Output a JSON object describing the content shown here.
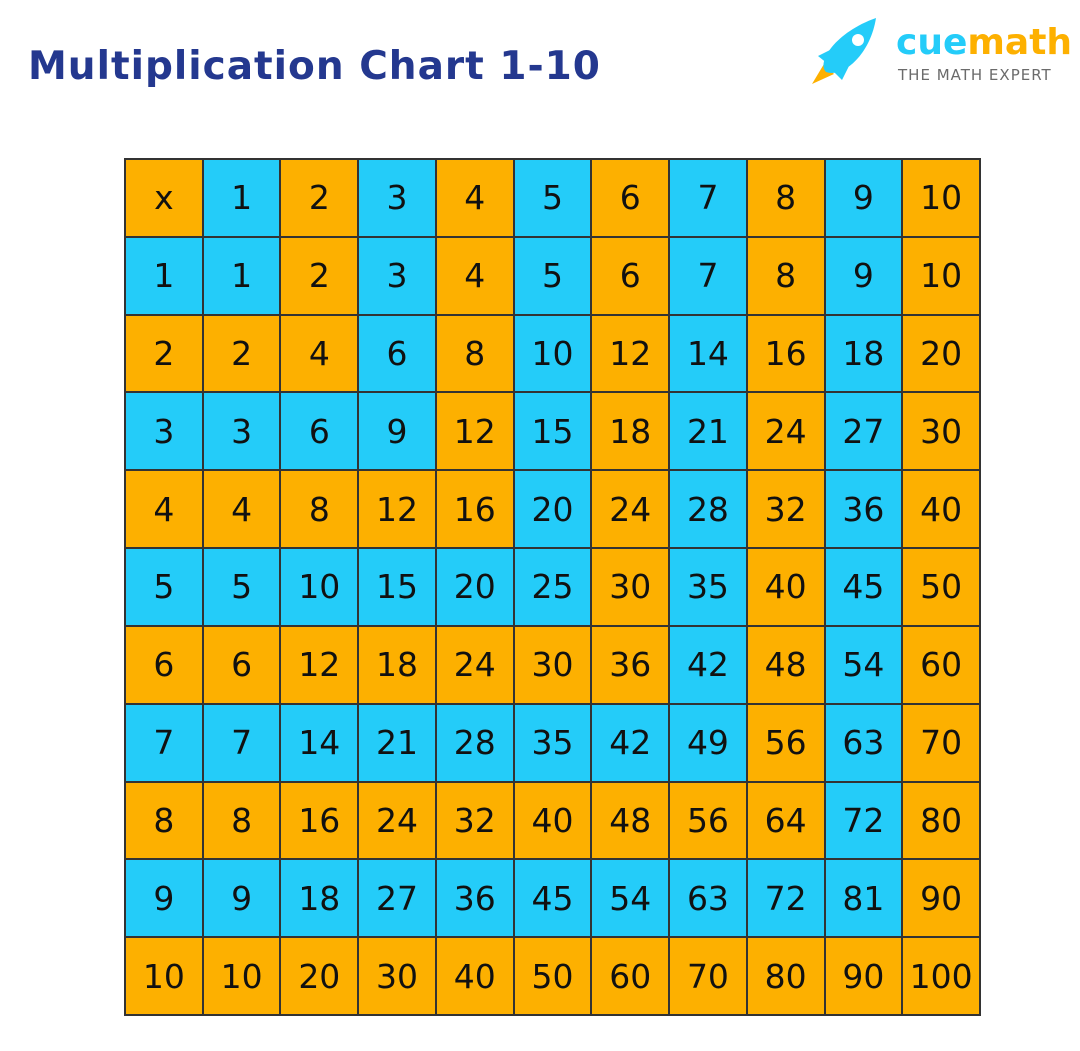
{
  "title": "Multiplication Chart 1-10",
  "logo": {
    "brand_part1": "cue",
    "brand_part2": "math",
    "tagline": "THE MATH EXPERT",
    "icon": "rocket-icon"
  },
  "colors": {
    "orange": "#fdb000",
    "blue": "#24ccf9",
    "title": "#24388f"
  },
  "table": {
    "corner": "x",
    "header": [
      "1",
      "2",
      "3",
      "4",
      "5",
      "6",
      "7",
      "8",
      "9",
      "10"
    ],
    "rows": [
      [
        "1",
        "1",
        "2",
        "3",
        "4",
        "5",
        "6",
        "7",
        "8",
        "9",
        "10"
      ],
      [
        "2",
        "2",
        "4",
        "6",
        "8",
        "10",
        "12",
        "14",
        "16",
        "18",
        "20"
      ],
      [
        "3",
        "3",
        "6",
        "9",
        "12",
        "15",
        "18",
        "21",
        "24",
        "27",
        "30"
      ],
      [
        "4",
        "4",
        "8",
        "12",
        "16",
        "20",
        "24",
        "28",
        "32",
        "36",
        "40"
      ],
      [
        "5",
        "5",
        "10",
        "15",
        "20",
        "25",
        "30",
        "35",
        "40",
        "45",
        "50"
      ],
      [
        "6",
        "6",
        "12",
        "18",
        "24",
        "30",
        "36",
        "42",
        "48",
        "54",
        "60"
      ],
      [
        "7",
        "7",
        "14",
        "21",
        "28",
        "35",
        "42",
        "49",
        "56",
        "63",
        "70"
      ],
      [
        "8",
        "8",
        "16",
        "24",
        "32",
        "40",
        "48",
        "56",
        "64",
        "72",
        "80"
      ],
      [
        "9",
        "9",
        "18",
        "27",
        "36",
        "45",
        "54",
        "63",
        "72",
        "81",
        "90"
      ],
      [
        "10",
        "10",
        "20",
        "30",
        "40",
        "50",
        "60",
        "70",
        "80",
        "90",
        "100"
      ]
    ],
    "cell_colors": [
      [
        "O",
        "B",
        "O",
        "B",
        "O",
        "B",
        "O",
        "B",
        "O",
        "B",
        "O"
      ],
      [
        "B",
        "B",
        "O",
        "B",
        "O",
        "B",
        "O",
        "B",
        "O",
        "B",
        "O"
      ],
      [
        "O",
        "O",
        "O",
        "B",
        "O",
        "B",
        "O",
        "B",
        "O",
        "B",
        "O"
      ],
      [
        "B",
        "B",
        "B",
        "B",
        "O",
        "B",
        "O",
        "B",
        "O",
        "B",
        "O"
      ],
      [
        "O",
        "O",
        "O",
        "O",
        "O",
        "B",
        "O",
        "B",
        "O",
        "B",
        "O"
      ],
      [
        "B",
        "B",
        "B",
        "B",
        "B",
        "B",
        "O",
        "B",
        "O",
        "B",
        "O"
      ],
      [
        "O",
        "O",
        "O",
        "O",
        "O",
        "O",
        "O",
        "B",
        "O",
        "B",
        "O"
      ],
      [
        "B",
        "B",
        "B",
        "B",
        "B",
        "B",
        "B",
        "B",
        "O",
        "B",
        "O"
      ],
      [
        "O",
        "O",
        "O",
        "O",
        "O",
        "O",
        "O",
        "O",
        "O",
        "B",
        "O"
      ],
      [
        "B",
        "B",
        "B",
        "B",
        "B",
        "B",
        "B",
        "B",
        "B",
        "B",
        "O"
      ],
      [
        "O",
        "O",
        "O",
        "O",
        "O",
        "O",
        "O",
        "O",
        "O",
        "O",
        "O"
      ]
    ]
  }
}
